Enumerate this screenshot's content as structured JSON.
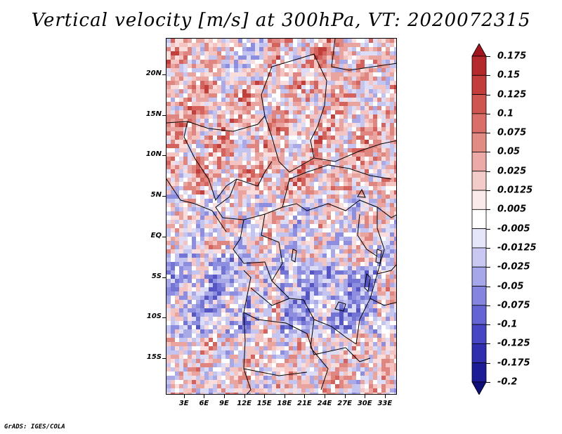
{
  "title": "Vertical velocity [m/s] at 300hPa, VT: 2020072315",
  "credit": "GrADS: IGES/COLA",
  "map": {
    "lat_labels": [
      "20N",
      "15N",
      "10N",
      "5N",
      "EQ",
      "5S",
      "10S",
      "15S"
    ],
    "lat_values": [
      20,
      15,
      10,
      5,
      0,
      -5,
      -10,
      -15
    ],
    "lon_labels": [
      "3E",
      "6E",
      "9E",
      "12E",
      "15E",
      "18E",
      "21E",
      "24E",
      "27E",
      "30E",
      "33E"
    ],
    "lon_values": [
      3,
      6,
      9,
      12,
      15,
      18,
      21,
      24,
      27,
      30,
      33
    ],
    "lat_range": [
      -19.5,
      24.5
    ],
    "lon_range": [
      0.3,
      34.8
    ]
  },
  "colorbar": {
    "labels": [
      "0.175",
      "0.15",
      "0.125",
      "0.1",
      "0.075",
      "0.05",
      "0.025",
      "0.0125",
      "0.005",
      "-0.005",
      "-0.0125",
      "-0.025",
      "-0.05",
      "-0.075",
      "-0.1",
      "-0.125",
      "-0.175",
      "-0.2"
    ],
    "colors": [
      "#a0161e",
      "#b42a2c",
      "#c23d3b",
      "#cf5650",
      "#d96f68",
      "#e28b85",
      "#ebaaa6",
      "#f3cbc9",
      "#faeaea",
      "#ffffff",
      "#e6e6fa",
      "#c8c8f2",
      "#a6a6ea",
      "#8585e0",
      "#6464d4",
      "#4646c4",
      "#2e2eae",
      "#1c1c96",
      "#0f0f7a"
    ]
  }
}
